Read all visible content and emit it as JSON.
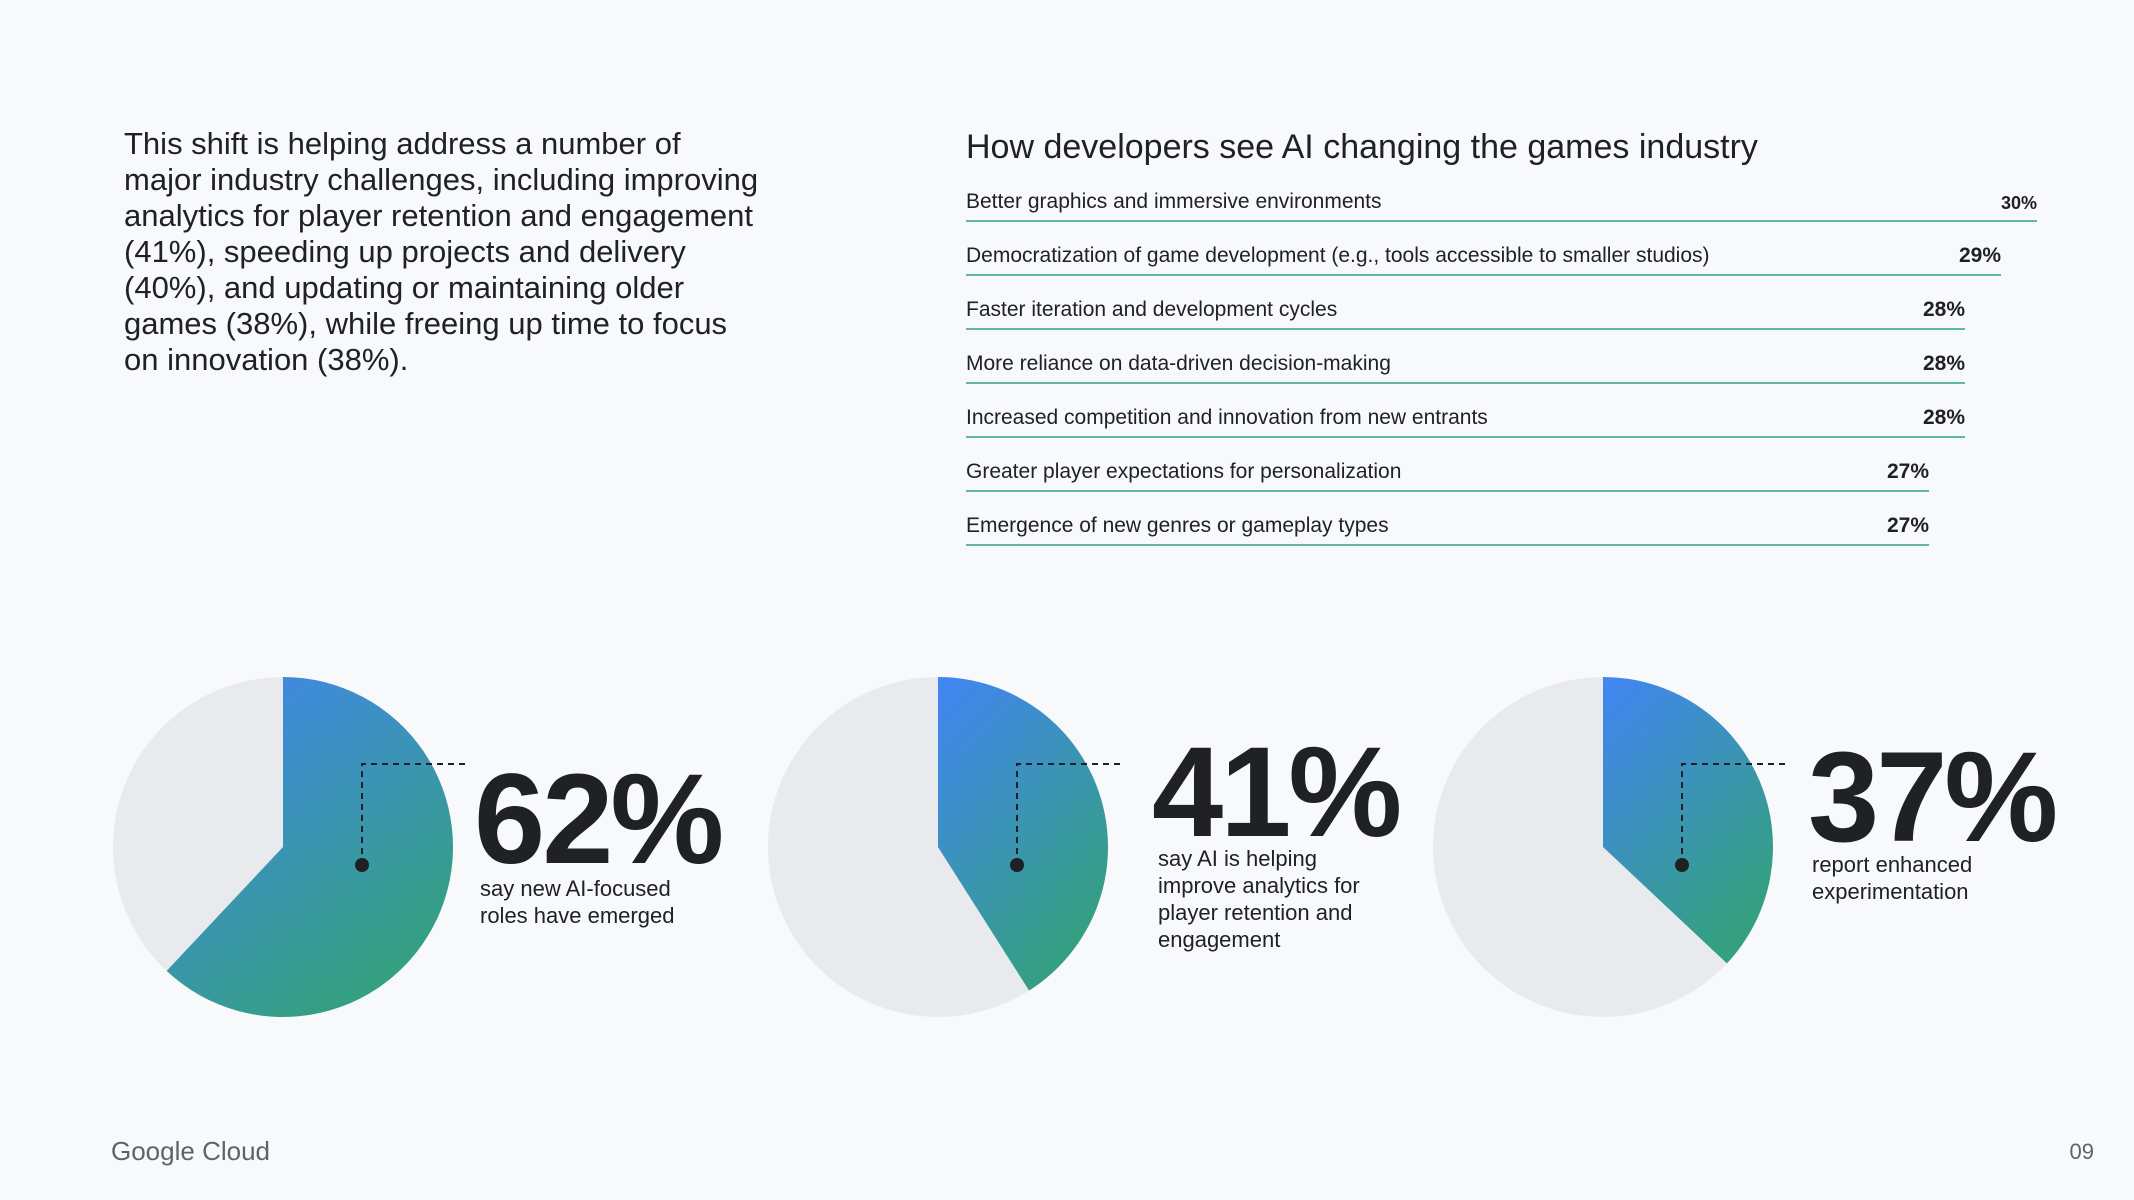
{
  "intro_text": "This shift is helping address a number of major industry challenges, including improving analytics for player retention and engagement (41%), speeding up projects and delivery (40%), and updating or maintaining older games (38%), while freeing up time to focus on innovation (38%).",
  "colors": {
    "accent_blue": "#4285f4",
    "accent_green": "#34a07e",
    "line": "#5fb8a6",
    "pie_background": "#e8eaed"
  },
  "chart_data": [
    {
      "type": "bar",
      "title": "How developers see AI changing the games industry",
      "categories": [
        "Better graphics and immersive environments",
        "Democratization of game development (e.g., tools accessible to smaller studios)",
        "Faster iteration and development cycles",
        "More reliance on data-driven decision-making",
        "Increased competition and innovation from new entrants",
        "Greater player expectations for personalization",
        "Emergence of new genres or gameplay types"
      ],
      "values": [
        30,
        29,
        28,
        28,
        28,
        27,
        27
      ],
      "value_labels": [
        "30%",
        "29%",
        "28%",
        "28%",
        "28%",
        "27%",
        "27%"
      ],
      "unit": "%"
    },
    {
      "type": "pie",
      "value": 62,
      "label": "62%",
      "caption": "say new AI-focused roles have emerged"
    },
    {
      "type": "pie",
      "value": 41,
      "label": "41%",
      "caption": "say AI is helping improve analytics for player retention and engagement"
    },
    {
      "type": "pie",
      "value": 37,
      "label": "37%",
      "caption": "report enhanced experimentation"
    }
  ],
  "footer": {
    "logo_text": "Google Cloud",
    "page_number": "09"
  }
}
